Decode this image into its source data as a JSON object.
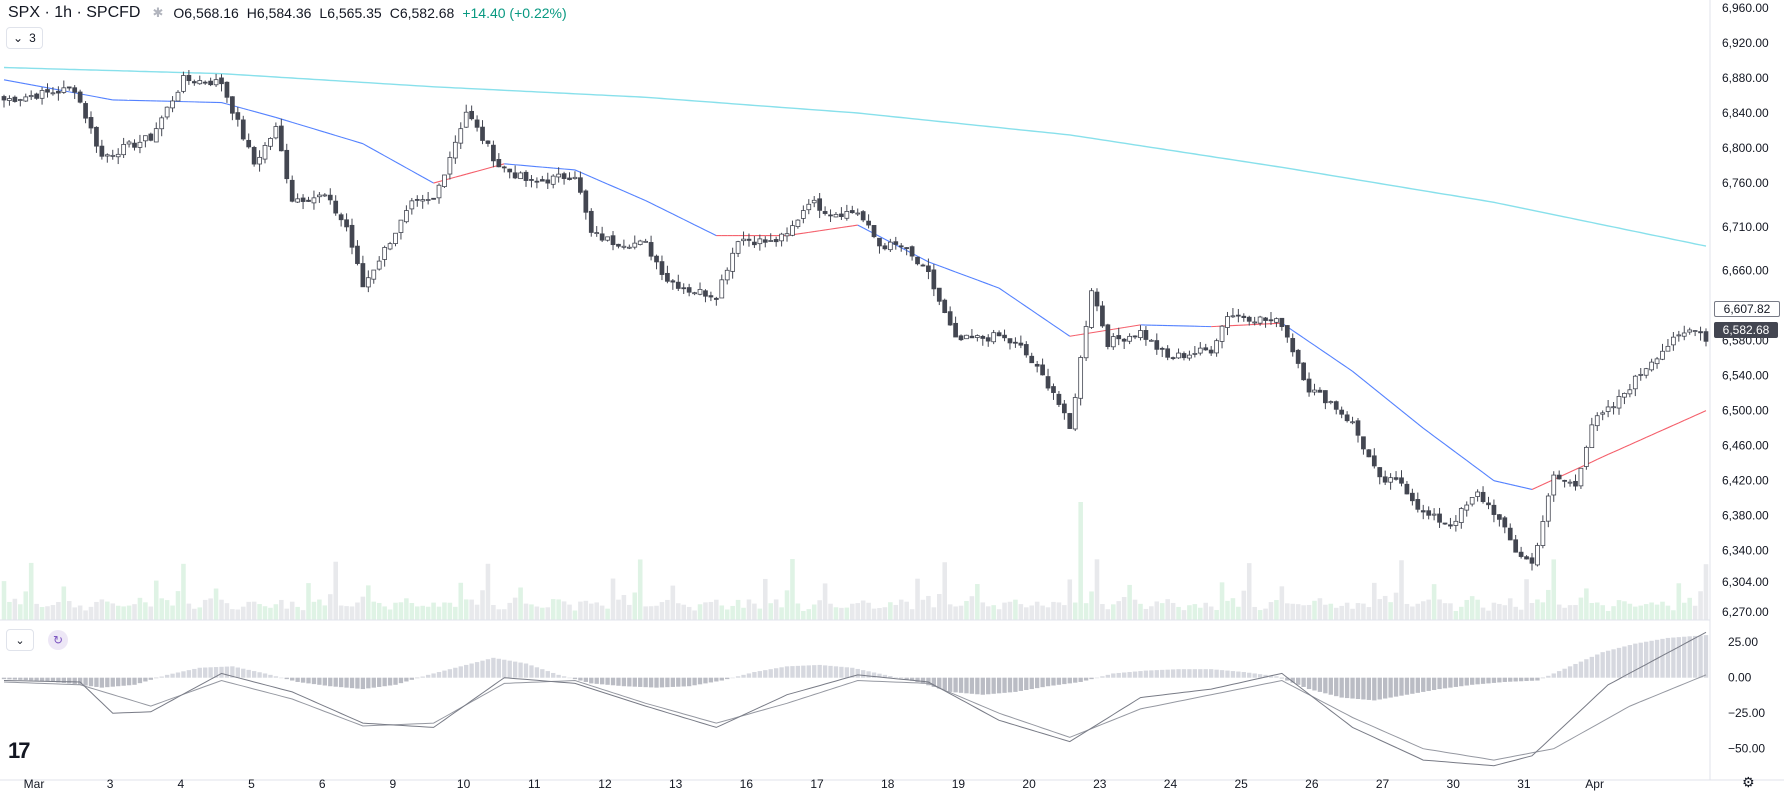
{
  "header": {
    "symbol": "SPX · 1h · SPCFD",
    "open_label": "O",
    "open": "6,568.16",
    "high_label": "H",
    "high": "6,584.36",
    "low_label": "L",
    "low": "6,565.35",
    "close_label": "C",
    "close": "6,582.68",
    "change": "+14.40 (+0.22%)"
  },
  "indicators_badge": {
    "count": "3"
  },
  "price_labels": {
    "prev": "6,607.82",
    "last": "6,582.68"
  },
  "colors": {
    "up_body": "#ffffff",
    "down_body": "#434651",
    "candle_border": "#434651",
    "ema_fast_up": "#f23645",
    "ema_fast_down": "#2962ff",
    "sma_slow": "#26c6da",
    "volume_up": "#dff3e5",
    "volume_down": "#e8e9ec",
    "macd_line": "#787b86",
    "signal_line": "#9598a1"
  },
  "chart_data": {
    "type": "candlestick",
    "symbol": "SPX",
    "timeframe": "1h",
    "price_axis": {
      "ticks": [
        6960,
        6920,
        6880,
        6840,
        6800,
        6760,
        6710,
        6660,
        6620,
        6580,
        6540,
        6500,
        6460,
        6420,
        6380,
        6340,
        6304,
        6270
      ],
      "tick_labels": [
        "6,960.00",
        "6,920.00",
        "6,880.00",
        "6,840.00",
        "6,800.00",
        "6,760.00",
        "6,710.00",
        "6,660.00",
        "6,620.00",
        "6,580.00",
        "6,540.00",
        "6,500.00",
        "6,460.00",
        "6,420.00",
        "6,380.00",
        "6,340.00",
        "6,304.00",
        "6,270.00"
      ],
      "range": [
        6270,
        6960
      ]
    },
    "time_axis": {
      "labels": [
        "Mar",
        "3",
        "4",
        "5",
        "6",
        "9",
        "10",
        "11",
        "12",
        "13",
        "16",
        "17",
        "18",
        "19",
        "20",
        "23",
        "24",
        "25",
        "26",
        "27",
        "30",
        "31",
        "Apr"
      ],
      "label_bar_index": [
        0,
        14,
        27,
        40,
        53,
        66,
        79,
        92,
        105,
        118,
        131,
        144,
        157,
        170,
        183,
        196,
        209,
        222,
        235,
        248,
        261,
        274,
        287
      ]
    },
    "series_close": [
      [
        0,
        6855
      ],
      [
        13,
        6868
      ],
      [
        18,
        6790
      ],
      [
        27,
        6812
      ],
      [
        33,
        6878
      ],
      [
        40,
        6875
      ],
      [
        46,
        6782
      ],
      [
        50,
        6822
      ],
      [
        53,
        6742
      ],
      [
        59,
        6745
      ],
      [
        63,
        6710
      ],
      [
        66,
        6642
      ],
      [
        72,
        6705
      ],
      [
        75,
        6735
      ],
      [
        79,
        6740
      ],
      [
        85,
        6842
      ],
      [
        91,
        6780
      ],
      [
        97,
        6760
      ],
      [
        105,
        6770
      ],
      [
        108,
        6702
      ],
      [
        112,
        6693
      ],
      [
        118,
        6690
      ],
      [
        122,
        6650
      ],
      [
        126,
        6638
      ],
      [
        131,
        6632
      ],
      [
        135,
        6697
      ],
      [
        141,
        6692
      ],
      [
        144,
        6700
      ],
      [
        148,
        6740
      ],
      [
        152,
        6726
      ],
      [
        157,
        6727
      ],
      [
        161,
        6689
      ],
      [
        165,
        6688
      ],
      [
        170,
        6655
      ],
      [
        175,
        6580
      ],
      [
        183,
        6585
      ],
      [
        187,
        6572
      ],
      [
        193,
        6522
      ],
      [
        196,
        6478
      ],
      [
        200,
        6640
      ],
      [
        203,
        6578
      ],
      [
        209,
        6590
      ],
      [
        214,
        6560
      ],
      [
        222,
        6570
      ],
      [
        225,
        6610
      ],
      [
        228,
        6608
      ],
      [
        235,
        6600
      ],
      [
        240,
        6525
      ],
      [
        244,
        6510
      ],
      [
        248,
        6485
      ],
      [
        253,
        6420
      ],
      [
        257,
        6418
      ],
      [
        261,
        6382
      ],
      [
        266,
        6370
      ],
      [
        271,
        6405
      ],
      [
        274,
        6385
      ],
      [
        278,
        6340
      ],
      [
        281,
        6325
      ],
      [
        285,
        6424
      ],
      [
        289,
        6415
      ],
      [
        292,
        6485
      ],
      [
        296,
        6505
      ],
      [
        299,
        6528
      ],
      [
        303,
        6558
      ],
      [
        306,
        6575
      ],
      [
        311,
        6596
      ],
      [
        313,
        6582.68
      ]
    ],
    "volume": [
      40,
      18,
      22,
      14,
      28,
      62,
      14,
      10,
      12,
      16,
      20,
      34,
      18,
      14,
      12,
      10,
      14,
      18,
      20,
      16,
      12,
      10,
      14,
      16,
      12,
      18,
      14,
      10
    ],
    "volume_spike": {
      "bar_index": 198,
      "relative": 1.0
    },
    "moving_averages": [
      {
        "kind": "ema_fast",
        "points": [
          [
            0,
            6878
          ],
          [
            20,
            6855
          ],
          [
            40,
            6852
          ],
          [
            50,
            6835
          ],
          [
            66,
            6805
          ],
          [
            79,
            6760
          ],
          [
            92,
            6782
          ],
          [
            105,
            6775
          ],
          [
            118,
            6740
          ],
          [
            131,
            6700
          ],
          [
            144,
            6700
          ],
          [
            157,
            6712
          ],
          [
            170,
            6670
          ],
          [
            183,
            6640
          ],
          [
            196,
            6585
          ],
          [
            209,
            6598
          ],
          [
            222,
            6596
          ],
          [
            235,
            6600
          ],
          [
            248,
            6545
          ],
          [
            261,
            6480
          ],
          [
            274,
            6420
          ],
          [
            281,
            6410
          ],
          [
            295,
            6450
          ],
          [
            313,
            6500
          ]
        ]
      },
      {
        "kind": "sma_slow",
        "points": [
          [
            0,
            6892
          ],
          [
            40,
            6885
          ],
          [
            79,
            6870
          ],
          [
            118,
            6858
          ],
          [
            157,
            6840
          ],
          [
            196,
            6815
          ],
          [
            235,
            6778
          ],
          [
            274,
            6738
          ],
          [
            313,
            6688
          ]
        ]
      }
    ],
    "macd": {
      "axis_ticks": [
        25,
        0,
        -25,
        -50
      ],
      "tick_labels": [
        "25.00",
        "0.00",
        "−25.00",
        "−50.00"
      ],
      "range": [
        -65,
        35
      ],
      "macd_line": [
        [
          0,
          -2
        ],
        [
          14,
          -3
        ],
        [
          20,
          -25
        ],
        [
          27,
          -24
        ],
        [
          40,
          3
        ],
        [
          53,
          -10
        ],
        [
          66,
          -32
        ],
        [
          79,
          -35
        ],
        [
          92,
          0
        ],
        [
          105,
          -4
        ],
        [
          118,
          -20
        ],
        [
          131,
          -35
        ],
        [
          144,
          -12
        ],
        [
          157,
          2
        ],
        [
          170,
          -3
        ],
        [
          183,
          -30
        ],
        [
          196,
          -45
        ],
        [
          209,
          -14
        ],
        [
          222,
          -8
        ],
        [
          235,
          3
        ],
        [
          248,
          -35
        ],
        [
          261,
          -58
        ],
        [
          274,
          -62
        ],
        [
          281,
          -55
        ],
        [
          295,
          -5
        ],
        [
          313,
          32
        ]
      ],
      "signal_line": [
        [
          0,
          -3
        ],
        [
          14,
          -5
        ],
        [
          27,
          -20
        ],
        [
          40,
          -2
        ],
        [
          53,
          -15
        ],
        [
          66,
          -34
        ],
        [
          79,
          -32
        ],
        [
          92,
          -4
        ],
        [
          105,
          -2
        ],
        [
          118,
          -18
        ],
        [
          131,
          -32
        ],
        [
          144,
          -18
        ],
        [
          157,
          -2
        ],
        [
          170,
          -4
        ],
        [
          183,
          -25
        ],
        [
          196,
          -42
        ],
        [
          209,
          -22
        ],
        [
          222,
          -12
        ],
        [
          235,
          -2
        ],
        [
          248,
          -28
        ],
        [
          261,
          -50
        ],
        [
          274,
          -58
        ],
        [
          285,
          -50
        ],
        [
          299,
          -20
        ],
        [
          313,
          2
        ]
      ],
      "histogram": [
        [
          0,
          -1
        ],
        [
          6,
          -2
        ],
        [
          12,
          -4
        ],
        [
          18,
          -7
        ],
        [
          24,
          -5
        ],
        [
          30,
          2
        ],
        [
          36,
          7
        ],
        [
          42,
          8
        ],
        [
          48,
          3
        ],
        [
          54,
          -3
        ],
        [
          60,
          -6
        ],
        [
          66,
          -8
        ],
        [
          72,
          -5
        ],
        [
          78,
          2
        ],
        [
          84,
          8
        ],
        [
          90,
          14
        ],
        [
          96,
          10
        ],
        [
          102,
          2
        ],
        [
          108,
          -4
        ],
        [
          114,
          -6
        ],
        [
          120,
          -7
        ],
        [
          126,
          -6
        ],
        [
          132,
          -2
        ],
        [
          138,
          4
        ],
        [
          144,
          8
        ],
        [
          150,
          9
        ],
        [
          156,
          7
        ],
        [
          162,
          2
        ],
        [
          168,
          -3
        ],
        [
          174,
          -10
        ],
        [
          180,
          -12
        ],
        [
          186,
          -10
        ],
        [
          192,
          -6
        ],
        [
          198,
          -3
        ],
        [
          204,
          3
        ],
        [
          210,
          5
        ],
        [
          216,
          6
        ],
        [
          222,
          6
        ],
        [
          228,
          4
        ],
        [
          234,
          1
        ],
        [
          240,
          -8
        ],
        [
          246,
          -14
        ],
        [
          252,
          -16
        ],
        [
          258,
          -12
        ],
        [
          264,
          -8
        ],
        [
          270,
          -5
        ],
        [
          276,
          -3
        ],
        [
          282,
          -2
        ],
        [
          288,
          8
        ],
        [
          294,
          18
        ],
        [
          300,
          24
        ],
        [
          306,
          28
        ],
        [
          313,
          30
        ]
      ]
    }
  }
}
